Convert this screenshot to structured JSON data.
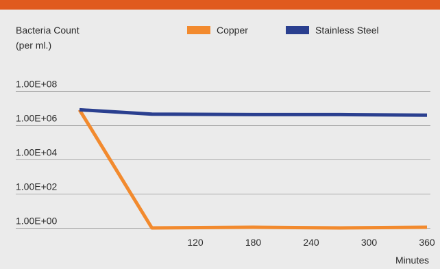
{
  "colors": {
    "top_bar": "#e05a1e",
    "background": "#ebebeb",
    "gridline": "#a8a8a8",
    "copper": "#f28a2e",
    "stainless_steel": "#2a3f8f"
  },
  "chart_data": {
    "type": "line",
    "ylabel_line1": "Bacteria Count",
    "ylabel_line2": "(per ml.)",
    "xlabel": "Minutes",
    "y_scale": "log",
    "ylim": [
      1,
      100000000
    ],
    "y_ticks": [
      1,
      100,
      10000,
      1000000,
      100000000
    ],
    "y_tick_labels": [
      "1.00E+00",
      "1.00E+02",
      "1.00E+04",
      "1.00E+06",
      "1.00E+08"
    ],
    "xlim": [
      0,
      360
    ],
    "x_ticks": [
      120,
      180,
      240,
      300,
      360
    ],
    "x_tick_labels": [
      "120",
      "180",
      "240",
      "300",
      "360"
    ],
    "grid": true,
    "legend_position": "top",
    "x": [
      0,
      75,
      180,
      270,
      360
    ],
    "series": [
      {
        "name": "Copper",
        "color": "#f28a2e",
        "values": [
          8000000,
          1,
          1.1,
          1,
          1.1
        ]
      },
      {
        "name": "Stainless Steel",
        "color": "#2a3f8f",
        "values": [
          8000000,
          4500000,
          4200000,
          4200000,
          3900000
        ]
      }
    ]
  }
}
